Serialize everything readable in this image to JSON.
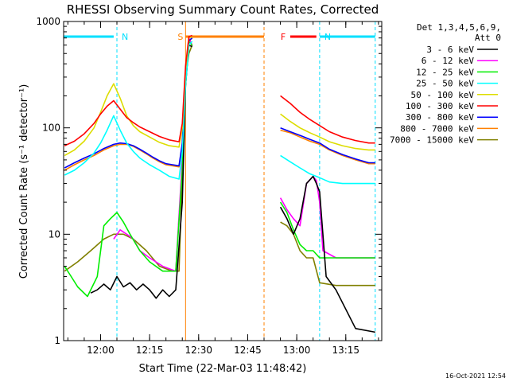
{
  "chart_data": {
    "type": "line",
    "title": "RHESSI Observing Summary Count Rates, Corrected",
    "xlabel": "Start Time (22-Mar-03 11:48:42)",
    "ylabel": "Corrected Count Rate (s⁻¹ detector⁻¹)",
    "yscale": "log",
    "ylim": [
      1,
      1000
    ],
    "y_ticks": [
      1,
      10,
      100,
      1000
    ],
    "y_tick_labels": [
      "1",
      "10",
      "100",
      "1000"
    ],
    "x_range": [
      "11:48:42",
      "13:26:00"
    ],
    "x_ticks": [
      "12:00",
      "12:15",
      "12:30",
      "12:45",
      "13:00",
      "13:15"
    ],
    "timestamp": "16-Oct-2021 12:54",
    "legend": {
      "placement": "right",
      "header": [
        "Det 1,3,4,5,6,9,",
        "Att 0"
      ],
      "entries": [
        {
          "label": "3 - 6 keV",
          "color": "#000000"
        },
        {
          "label": "6 - 12 keV",
          "color": "#ff00ff"
        },
        {
          "label": "12 - 25 keV",
          "color": "#00ee00"
        },
        {
          "label": "25 - 50 keV",
          "color": "#00ffff"
        },
        {
          "label": "50 - 100 keV",
          "color": "#dddd00"
        },
        {
          "label": "100 - 300 keV",
          "color": "#ff0000"
        },
        {
          "label": "300 - 800 keV",
          "color": "#0000ff"
        },
        {
          "label": "800 - 7000 keV",
          "color": "#ff8000"
        },
        {
          "label": "7000 - 15000 keV",
          "color": "#808000"
        }
      ]
    },
    "annotations": [
      {
        "label": "N",
        "color": "#00e0ff",
        "bar": [
          "11:48:42",
          "12:04:00"
        ],
        "line": "12:05:00",
        "line2": "11:48:42"
      },
      {
        "label": "N",
        "color": "#00e0ff",
        "bar": [
          "13:07:00",
          "13:24:00"
        ],
        "line": "13:07:00",
        "line2": "13:24:00"
      },
      {
        "label": "S",
        "color": "#ff8000",
        "bar": [
          "12:26:00",
          "12:50:00"
        ],
        "line": "12:26:00",
        "line2": "12:50:00"
      },
      {
        "label": "F",
        "color": "#ff0000",
        "bar": [
          "12:58:00",
          "13:06:00"
        ]
      }
    ],
    "series": [
      {
        "name": "7000 - 15000 keV",
        "color": "#808000",
        "times": [
          "11:49",
          "11:53",
          "11:57",
          "12:01",
          "12:04",
          "12:07",
          "12:10",
          "12:14",
          "12:18",
          "12:22",
          "12:24",
          "12:25",
          "12:26",
          "12:27",
          "12:28",
          "12:55",
          "12:57",
          "12:59",
          "13:01",
          "13:03",
          "13:05",
          "13:07",
          "13:12",
          "13:18",
          "13:24"
        ],
        "values": [
          4.5,
          5.5,
          7,
          9,
          10,
          10,
          9,
          7,
          5,
          4.5,
          4.5,
          35,
          300,
          500,
          600,
          13,
          12,
          10,
          7,
          6,
          6,
          3.5,
          3.3,
          3.3,
          3.3
        ]
      },
      {
        "name": "6 - 12 keV",
        "color": "#ff00ff",
        "times": [
          "12:04",
          "12:06",
          "12:08",
          "12:10",
          "12:12",
          "12:15",
          "12:19",
          "12:23",
          "12:25",
          "12:26",
          "12:27",
          "12:28",
          "12:55",
          "12:57",
          "12:59",
          "13:01",
          "13:03",
          "13:05",
          "13:06",
          "13:07",
          "13:08",
          "13:12",
          "13:18",
          "13:24"
        ],
        "values": [
          9,
          11,
          10,
          9,
          7,
          6,
          5,
          4.5,
          50,
          300,
          700,
          600,
          22,
          17,
          14,
          12,
          30,
          35,
          32,
          20,
          7,
          6,
          6,
          6
        ]
      },
      {
        "name": "12 - 25 keV",
        "color": "#00ee00",
        "times": [
          "11:49",
          "11:51",
          "11:53",
          "11:56",
          "11:59",
          "12:01",
          "12:03",
          "12:05",
          "12:07",
          "12:09",
          "12:12",
          "12:15",
          "12:19",
          "12:23",
          "12:25",
          "12:26",
          "12:27",
          "12:28",
          "12:55",
          "12:57",
          "12:59",
          "13:01",
          "13:03",
          "13:05",
          "13:07",
          "13:12",
          "13:18",
          "13:24"
        ],
        "values": [
          5,
          4,
          3.2,
          2.6,
          4,
          12,
          14,
          16,
          13,
          10,
          7,
          5.5,
          4.5,
          4.5,
          40,
          250,
          650,
          600,
          20,
          16,
          11,
          8,
          7,
          7,
          6,
          6,
          6,
          6
        ]
      },
      {
        "name": "3 - 6 keV",
        "color": "#000000",
        "times": [
          "11:57",
          "11:59",
          "12:01",
          "12:03",
          "12:05",
          "12:07",
          "12:09",
          "12:11",
          "12:13",
          "12:15",
          "12:17",
          "12:19",
          "12:21",
          "12:23",
          "12:25",
          "12:26",
          "12:27",
          "12:28",
          "12:55",
          "12:57",
          "12:59",
          "13:01",
          "13:03",
          "13:05",
          "13:06",
          "13:07",
          "13:09",
          "13:12",
          "13:18",
          "13:24"
        ],
        "values": [
          2.8,
          3,
          3.4,
          3,
          4,
          3.2,
          3.5,
          3,
          3.4,
          3,
          2.5,
          3,
          2.6,
          3,
          20,
          250,
          600,
          580,
          18,
          14,
          10,
          14,
          30,
          35,
          30,
          25,
          4,
          3,
          1.3,
          1.2
        ]
      },
      {
        "name": "800 - 7000 keV",
        "color": "#ff8000",
        "times": [
          "11:49",
          "11:52",
          "11:55",
          "11:58",
          "12:01",
          "12:04",
          "12:06",
          "12:08",
          "12:10",
          "12:12",
          "12:14",
          "12:16",
          "12:18",
          "12:20",
          "12:22",
          "12:24",
          "12:25",
          "12:26",
          "12:27",
          "12:28",
          "12:55",
          "12:58",
          "13:01",
          "13:04",
          "13:07",
          "13:10",
          "13:14",
          "13:18",
          "13:22",
          "13:24"
        ],
        "values": [
          40,
          45,
          50,
          55,
          62,
          68,
          70,
          70,
          67,
          62,
          57,
          52,
          48,
          45,
          44,
          43,
          70,
          300,
          650,
          700,
          95,
          90,
          82,
          75,
          70,
          62,
          55,
          50,
          46,
          46
        ]
      },
      {
        "name": "300 - 800 keV",
        "color": "#0000ff",
        "times": [
          "11:49",
          "11:52",
          "11:55",
          "11:58",
          "12:01",
          "12:04",
          "12:06",
          "12:08",
          "12:10",
          "12:12",
          "12:14",
          "12:16",
          "12:18",
          "12:20",
          "12:22",
          "12:24",
          "12:25",
          "12:26",
          "12:27",
          "12:28",
          "12:55",
          "12:58",
          "13:01",
          "13:04",
          "13:07",
          "13:10",
          "13:14",
          "13:18",
          "13:22",
          "13:24"
        ],
        "values": [
          42,
          47,
          52,
          57,
          64,
          70,
          72,
          71,
          68,
          63,
          58,
          53,
          49,
          46,
          45,
          44,
          72,
          300,
          660,
          700,
          100,
          92,
          85,
          78,
          72,
          63,
          56,
          51,
          47,
          47
        ]
      },
      {
        "name": "25 - 50 keV",
        "color": "#00ffff",
        "times": [
          "11:49",
          "11:52",
          "11:55",
          "11:58",
          "12:00",
          "12:02",
          "12:04",
          "12:06",
          "12:08",
          "12:10",
          "12:12",
          "12:15",
          "12:18",
          "12:21",
          "12:24",
          "12:25",
          "12:26",
          "12:27",
          "12:28",
          "12:55",
          "12:58",
          "13:01",
          "13:04",
          "13:07",
          "13:10",
          "13:14",
          "13:18",
          "13:22",
          "13:24"
        ],
        "values": [
          36,
          40,
          47,
          58,
          72,
          95,
          130,
          95,
          72,
          60,
          52,
          45,
          40,
          35,
          33,
          60,
          250,
          600,
          650,
          55,
          48,
          42,
          37,
          34,
          31,
          30,
          30,
          30,
          30
        ]
      },
      {
        "name": "50 - 100 keV",
        "color": "#dddd00",
        "times": [
          "11:49",
          "11:52",
          "11:55",
          "11:58",
          "12:00",
          "12:02",
          "12:04",
          "12:06",
          "12:08",
          "12:10",
          "12:12",
          "12:15",
          "12:18",
          "12:21",
          "12:24",
          "12:25",
          "12:26",
          "12:27",
          "12:28",
          "12:55",
          "12:58",
          "13:01",
          "13:04",
          "13:07",
          "13:10",
          "13:14",
          "13:18",
          "13:22",
          "13:24"
        ],
        "values": [
          55,
          62,
          75,
          100,
          140,
          200,
          260,
          190,
          130,
          105,
          92,
          82,
          73,
          68,
          66,
          100,
          350,
          700,
          720,
          135,
          115,
          100,
          90,
          82,
          74,
          68,
          64,
          62,
          62
        ]
      },
      {
        "name": "100 - 300 keV",
        "color": "#ff0000",
        "times": [
          "11:49",
          "11:52",
          "11:55",
          "11:58",
          "12:00",
          "12:02",
          "12:04",
          "12:06",
          "12:08",
          "12:10",
          "12:12",
          "12:15",
          "12:18",
          "12:21",
          "12:24",
          "12:25",
          "12:26",
          "12:27",
          "12:28",
          "12:55",
          "12:58",
          "13:01",
          "13:04",
          "13:07",
          "13:10",
          "13:14",
          "13:18",
          "13:22",
          "13:24"
        ],
        "values": [
          68,
          75,
          88,
          110,
          135,
          160,
          180,
          150,
          125,
          112,
          102,
          92,
          83,
          77,
          74,
          110,
          380,
          720,
          740,
          200,
          170,
          140,
          120,
          105,
          92,
          82,
          76,
          72,
          72
        ]
      }
    ]
  }
}
